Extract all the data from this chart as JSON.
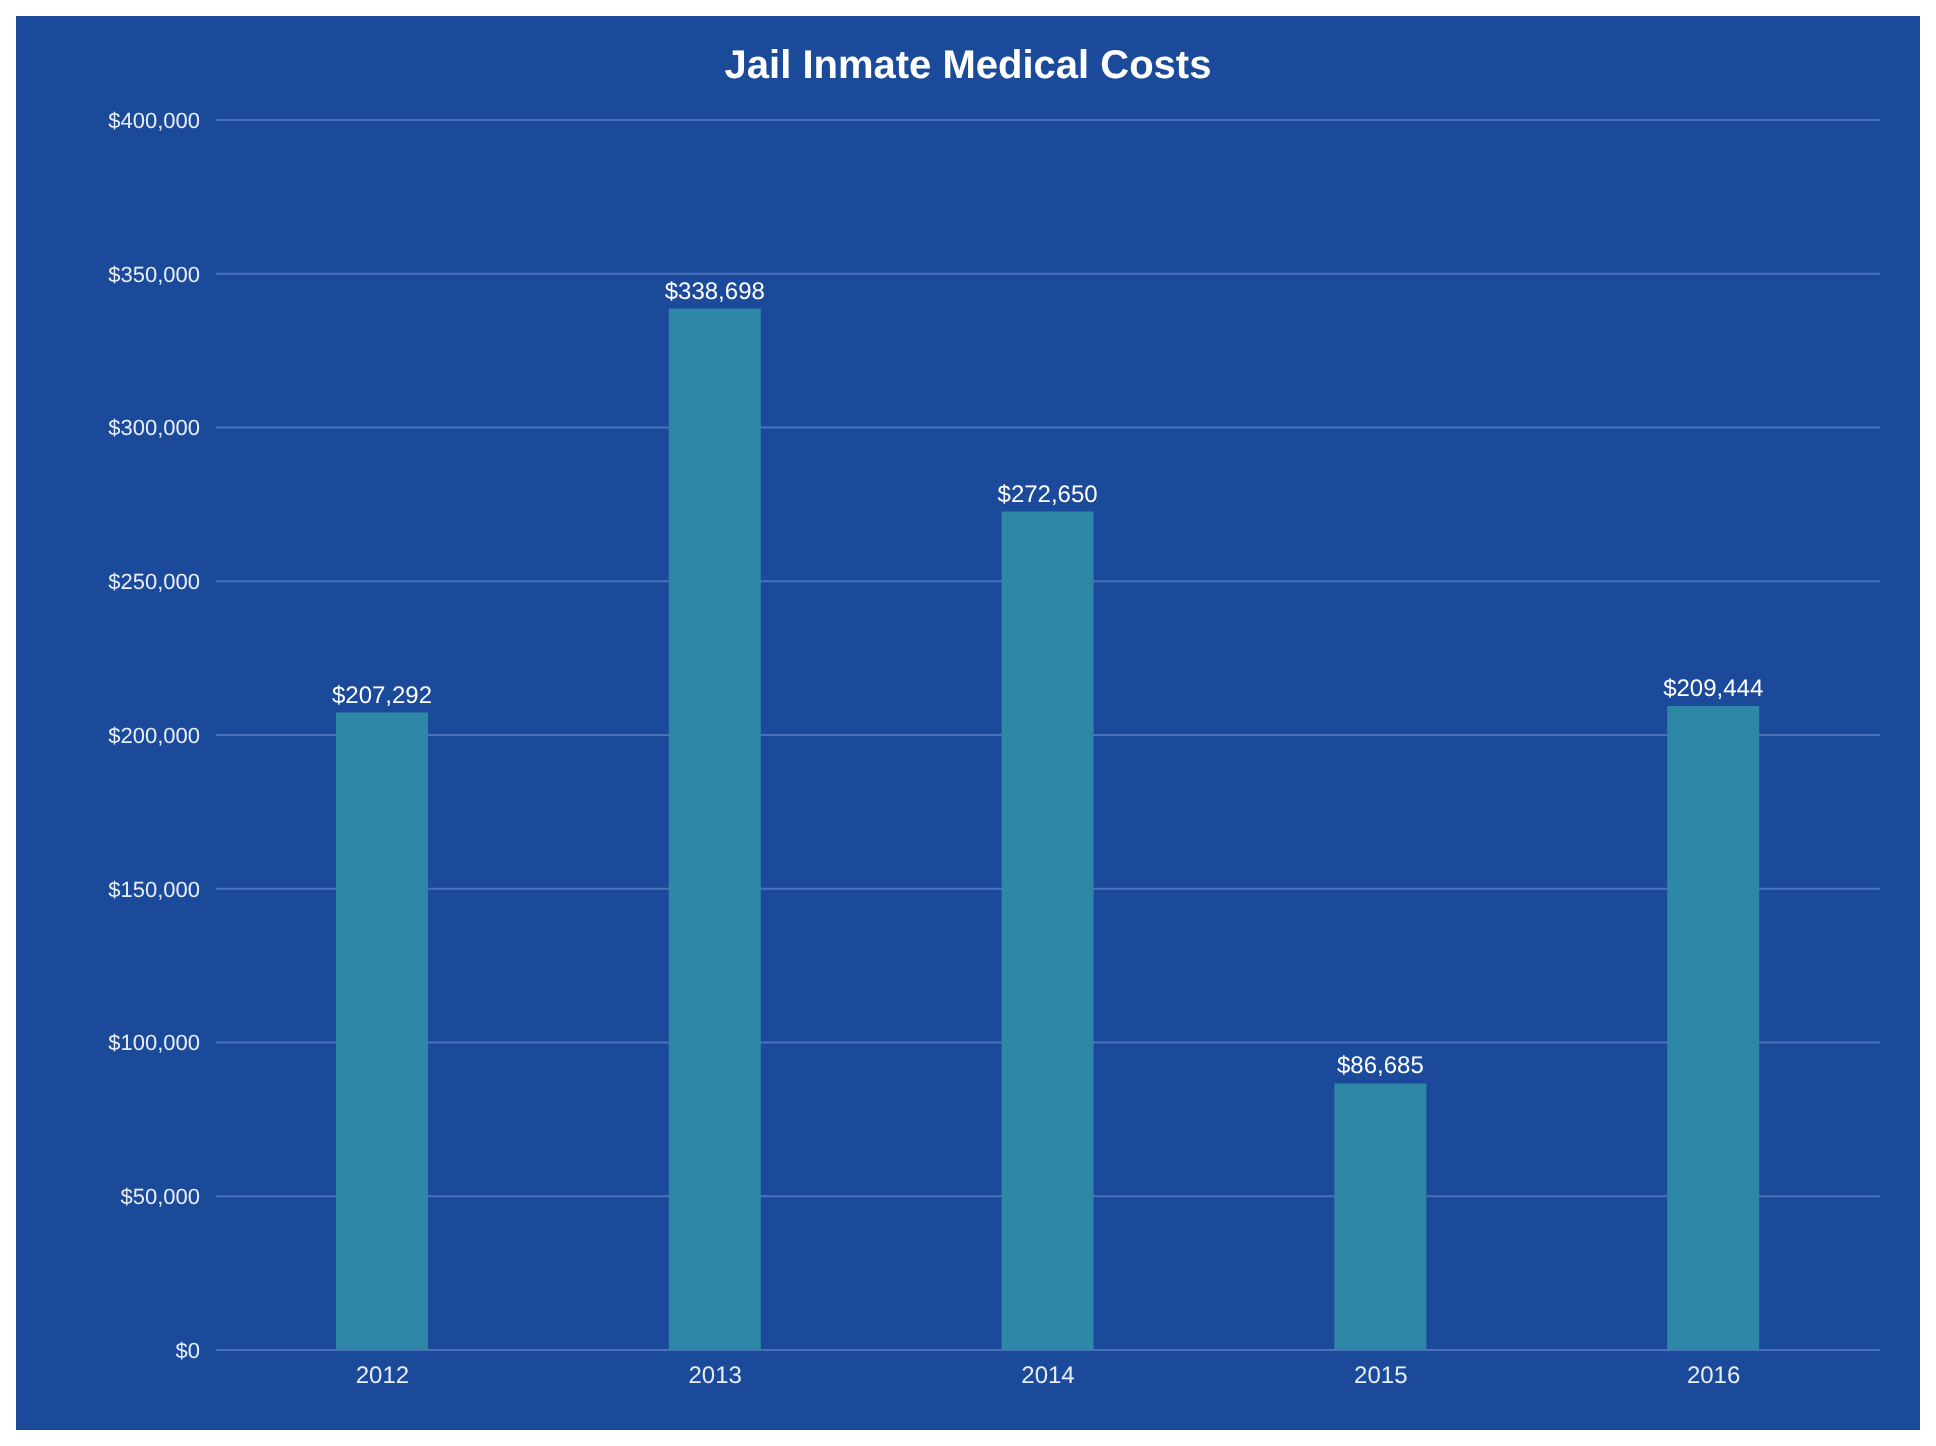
{
  "chart_data": {
    "type": "bar",
    "title": "Jail Inmate Medical Costs",
    "categories": [
      "2012",
      "2013",
      "2014",
      "2015",
      "2016"
    ],
    "values": [
      207292,
      338698,
      272650,
      86685,
      209444
    ],
    "value_labels": [
      "$207,292",
      "$338,698",
      "$272,650",
      "$86,685",
      "$209,444"
    ],
    "color": "#2f87a8",
    "ylim": [
      0,
      400000
    ],
    "yticks": [
      {
        "value": 0,
        "label": "$0"
      },
      {
        "value": 50000,
        "label": "$50,000"
      },
      {
        "value": 100000,
        "label": "$100,000"
      },
      {
        "value": 150000,
        "label": "$150,000"
      },
      {
        "value": 200000,
        "label": "$200,000"
      },
      {
        "value": 250000,
        "label": "$250,000"
      },
      {
        "value": 300000,
        "label": "$300,000"
      },
      {
        "value": 350000,
        "label": "$350,000"
      },
      {
        "value": 400000,
        "label": "$400,000"
      }
    ],
    "grid": "y"
  }
}
